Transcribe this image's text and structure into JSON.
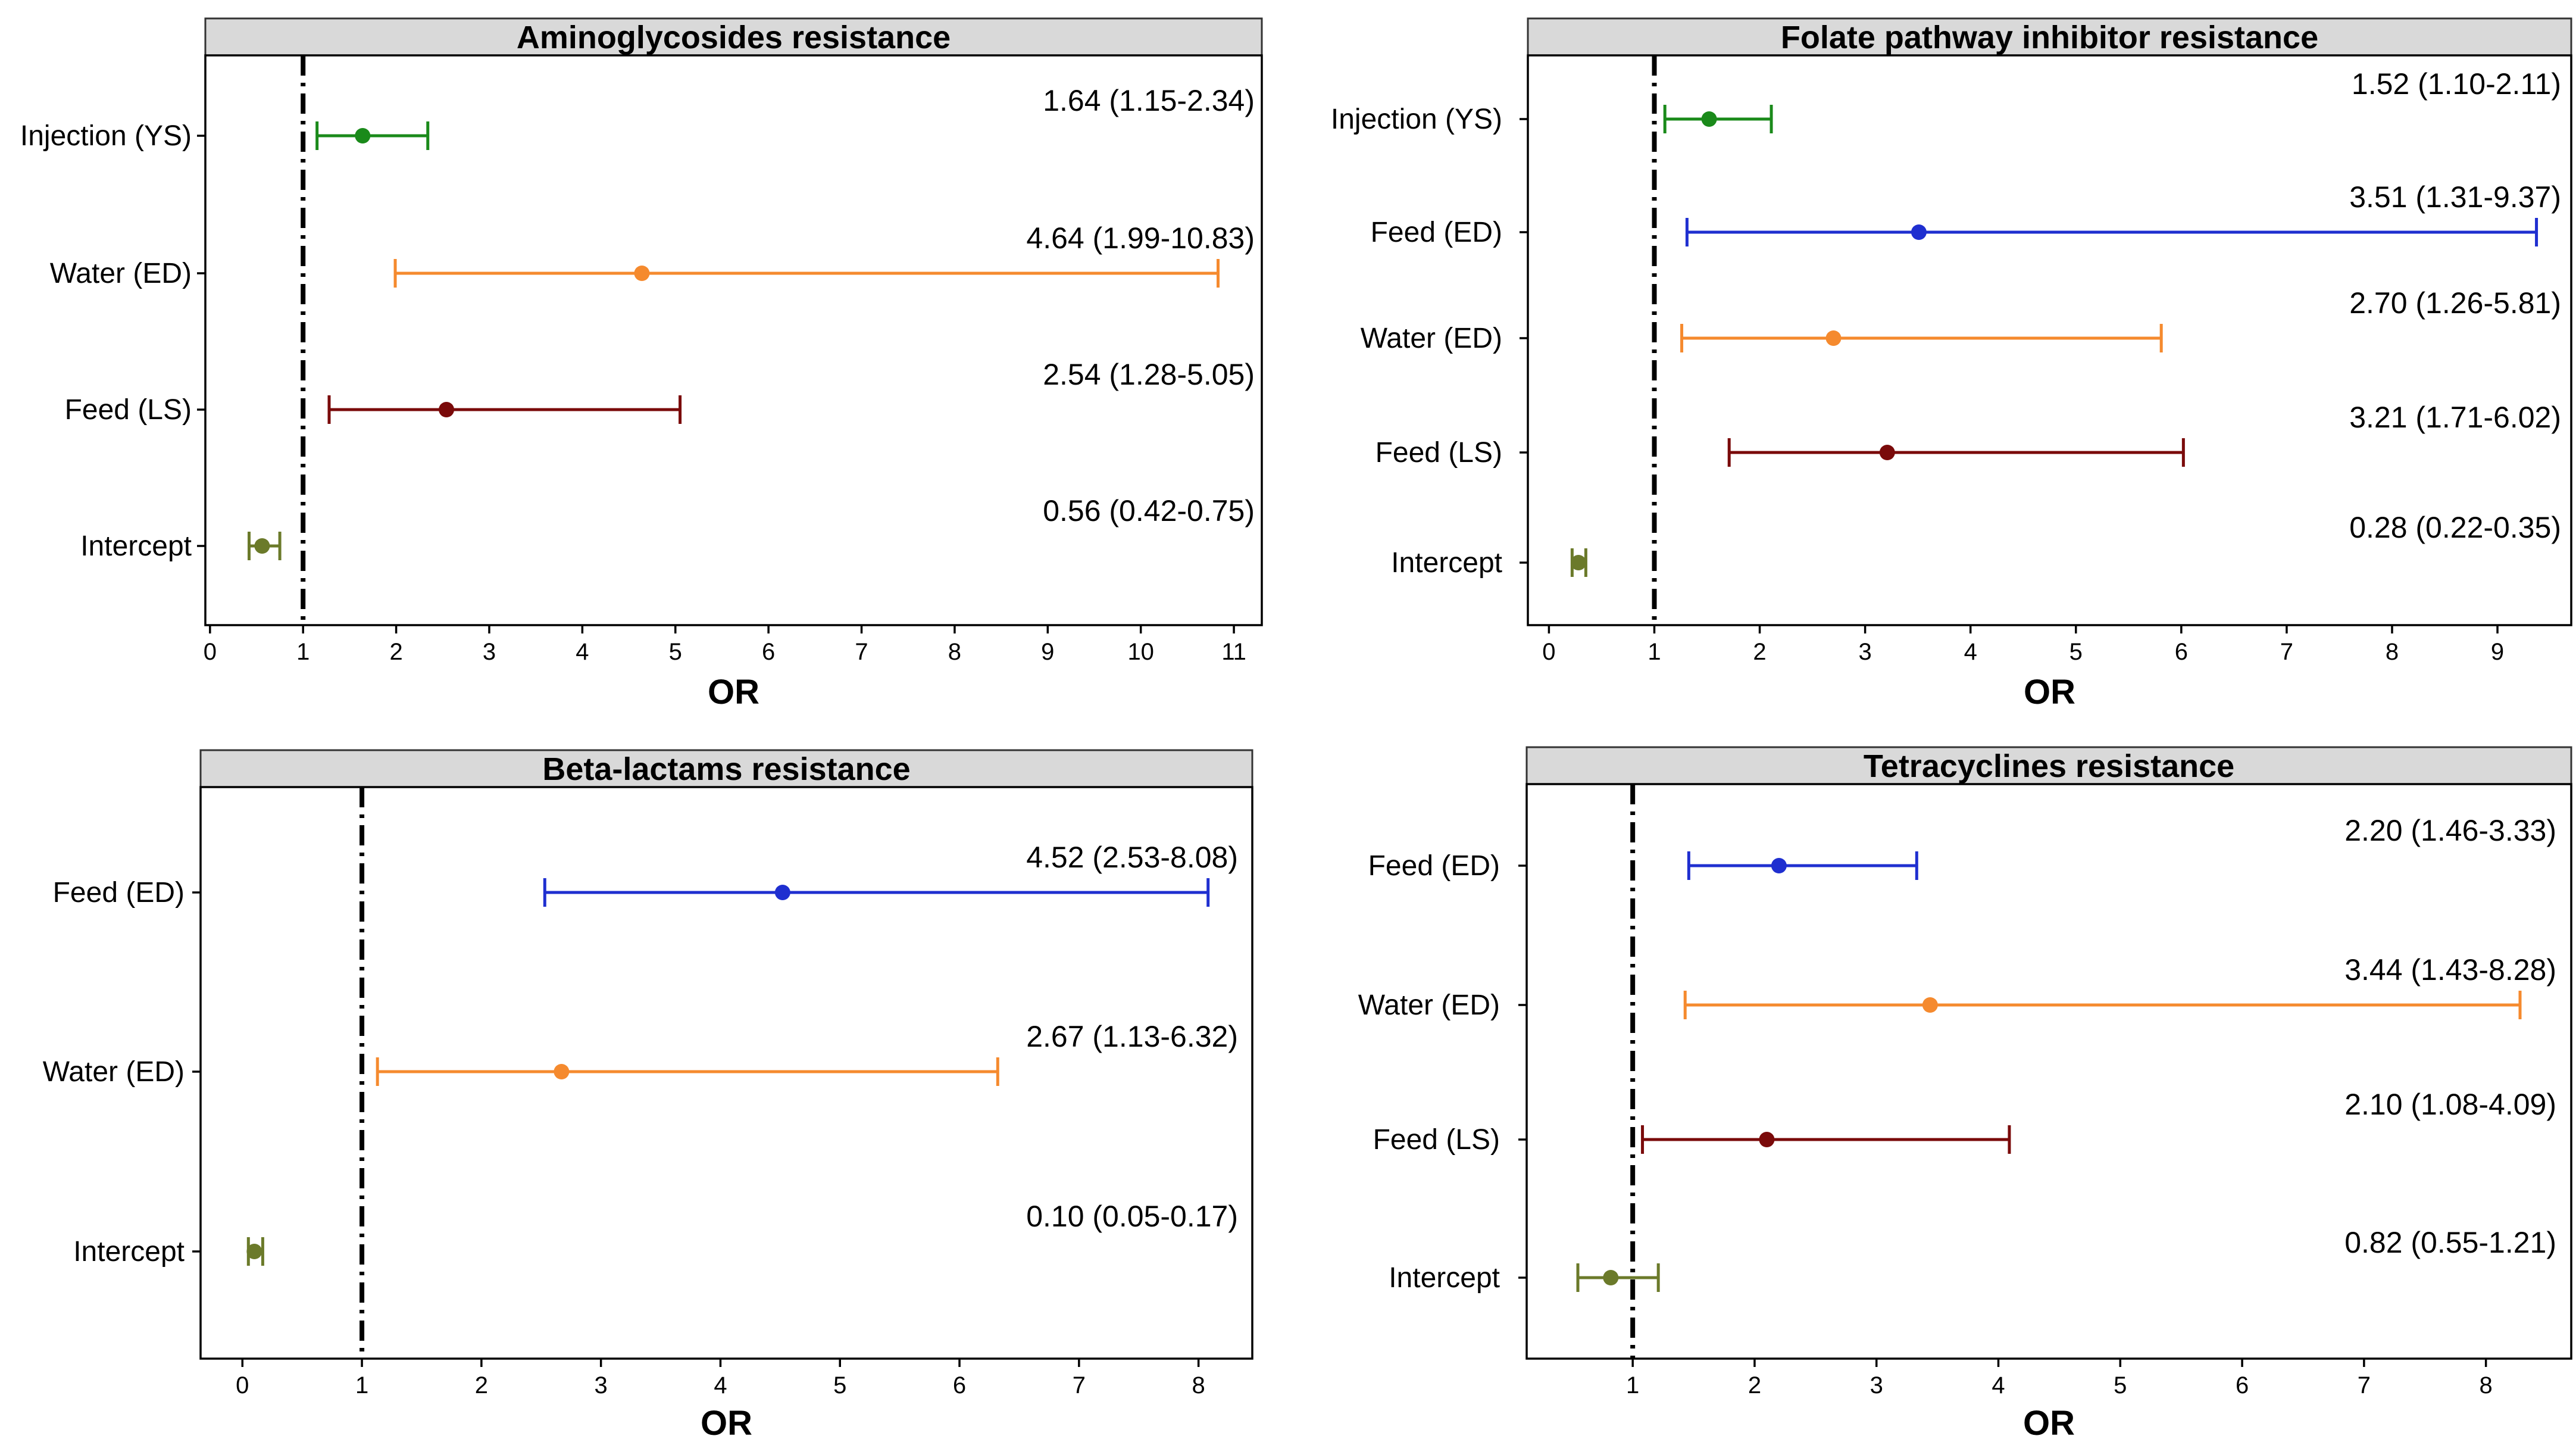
{
  "colors": {
    "Injection (YS)": "#1a8a1a",
    "Water (ED)": "#f58a2e",
    "Feed (LS)": "#7a0a0a",
    "Feed (ED)": "#1f2fd0",
    "Intercept": "#6b7a2a"
  },
  "x_axis_title": "OR",
  "chart_data": [
    {
      "type": "forest",
      "title": "Aminoglycosides resistance",
      "xlabel": "OR",
      "xlim": [
        -0.05,
        11.3
      ],
      "xticks": [
        0,
        1,
        2,
        3,
        4,
        5,
        6,
        7,
        8,
        9,
        10,
        11
      ],
      "reference_line": 1,
      "rows": [
        {
          "label": "Injection (YS)",
          "or": 1.64,
          "lo": 1.15,
          "hi": 2.34,
          "text": "1.64 (1.15-2.34)"
        },
        {
          "label": "Water (ED)",
          "or": 4.64,
          "lo": 1.99,
          "hi": 10.83,
          "text": "4.64 (1.99-10.83)"
        },
        {
          "label": "Feed (LS)",
          "or": 2.54,
          "lo": 1.28,
          "hi": 5.05,
          "text": "2.54 (1.28-5.05)"
        },
        {
          "label": "Intercept",
          "or": 0.56,
          "lo": 0.42,
          "hi": 0.75,
          "text": "0.56 (0.42-0.75)"
        }
      ]
    },
    {
      "type": "forest",
      "title": "Folate pathway inhibitor resistance",
      "xlabel": "OR",
      "xlim": [
        -0.2,
        9.7
      ],
      "xticks": [
        0,
        1,
        2,
        3,
        4,
        5,
        6,
        7,
        8,
        9
      ],
      "reference_line": 1,
      "rows": [
        {
          "label": "Injection (YS)",
          "or": 1.52,
          "lo": 1.1,
          "hi": 2.11,
          "text": "1.52 (1.10-2.11)"
        },
        {
          "label": "Feed (ED)",
          "or": 3.51,
          "lo": 1.31,
          "hi": 9.37,
          "text": "3.51 (1.31-9.37)"
        },
        {
          "label": "Water (ED)",
          "or": 2.7,
          "lo": 1.26,
          "hi": 5.81,
          "text": "2.70 (1.26-5.81)"
        },
        {
          "label": "Feed (LS)",
          "or": 3.21,
          "lo": 1.71,
          "hi": 6.02,
          "text": "3.21 (1.71-6.02)"
        },
        {
          "label": "Intercept",
          "or": 0.28,
          "lo": 0.22,
          "hi": 0.35,
          "text": "0.28 (0.22-0.35)"
        }
      ]
    },
    {
      "type": "forest",
      "title": "Beta-lactams resistance",
      "xlabel": "OR",
      "xlim": [
        -0.35,
        8.45
      ],
      "xticks": [
        0,
        1,
        2,
        3,
        4,
        5,
        6,
        7,
        8
      ],
      "reference_line": 1,
      "rows": [
        {
          "label": "Feed (ED)",
          "or": 4.52,
          "lo": 2.53,
          "hi": 8.08,
          "text": "4.52 (2.53-8.08)"
        },
        {
          "label": "Water (ED)",
          "or": 2.67,
          "lo": 1.13,
          "hi": 6.32,
          "text": "2.67 (1.13-6.32)"
        },
        {
          "label": "Intercept",
          "or": 0.1,
          "lo": 0.05,
          "hi": 0.17,
          "text": "0.10 (0.05-0.17)"
        }
      ]
    },
    {
      "type": "forest",
      "title": "Tetracyclines resistance",
      "xlabel": "OR",
      "xlim": [
        0.13,
        8.7
      ],
      "xticks": [
        1,
        2,
        3,
        4,
        5,
        6,
        7,
        8
      ],
      "reference_line": 1,
      "rows": [
        {
          "label": "Feed (ED)",
          "or": 2.2,
          "lo": 1.46,
          "hi": 3.33,
          "text": "2.20 (1.46-3.33)"
        },
        {
          "label": "Water (ED)",
          "or": 3.44,
          "lo": 1.43,
          "hi": 8.28,
          "text": "3.44 (1.43-8.28)"
        },
        {
          "label": "Feed (LS)",
          "or": 2.1,
          "lo": 1.08,
          "hi": 4.09,
          "text": "2.10 (1.08-4.09)"
        },
        {
          "label": "Intercept",
          "or": 0.82,
          "lo": 0.55,
          "hi": 1.21,
          "text": "0.82 (0.55-1.21)"
        }
      ]
    }
  ]
}
